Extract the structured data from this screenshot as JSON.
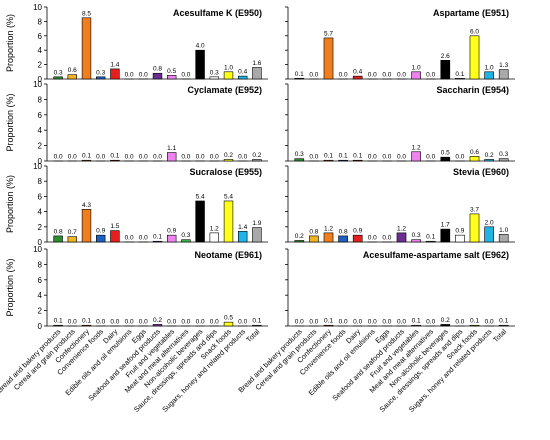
{
  "chart_data": {
    "type": "bar",
    "ylabel": "Proportion (%)",
    "ylim": [
      0,
      10
    ],
    "yticks": [
      "0",
      "2",
      "4",
      "6",
      "8",
      "10"
    ],
    "grid": false,
    "categories": [
      "Bread and bakery products",
      "Cereal and grain products",
      "Confectionery",
      "Convenience foods",
      "Dairy",
      "Edible oils and oil emulsions",
      "Eggs",
      "Seafood and seafood products",
      "Fruit and vegetables",
      "Meat and meat alternatives",
      "Non-alcoholic beverages",
      "Sauce, dressings, spreads and dips",
      "Snack foods",
      "Sugars, honey and related products",
      "Total"
    ],
    "category_colors": [
      "#2e8b2e",
      "#f0b41e",
      "#f07d1e",
      "#1f5fbf",
      "#e81e1e",
      "#2a4a9a",
      "#9e9e9e",
      "#6b2d8f",
      "#ee82ee",
      "#3cb44b",
      "#000000",
      "#ffffff",
      "#ffff1a",
      "#1eb4e6",
      "#a9a9a9"
    ],
    "panels": [
      {
        "title": "Acesulfame K (E950)",
        "values": [
          0.3,
          0.6,
          8.5,
          0.3,
          1.4,
          0.0,
          0.0,
          0.8,
          0.5,
          0.0,
          4.0,
          0.3,
          1.0,
          0.4,
          1.6
        ],
        "labels": [
          "0.3",
          "0.6",
          "8.5",
          "0.3",
          "1.4",
          "0.0",
          "0.0",
          "0.8",
          "0.5",
          "0.0",
          "4.0",
          "0.3",
          "1.0",
          "0.4",
          "1.6"
        ]
      },
      {
        "title": "Aspartame (E951)",
        "values": [
          0.1,
          0.0,
          5.7,
          0.0,
          0.4,
          0.0,
          0.0,
          0.0,
          1.0,
          0.0,
          2.6,
          0.1,
          6.0,
          1.0,
          1.3
        ],
        "labels": [
          "0.1",
          "0.0",
          "5.7",
          "0.0",
          "0.4",
          "0.0",
          "0.0",
          "0.0",
          "1.0",
          "0.0",
          "2.6",
          "0.1",
          "6.0",
          "1.0",
          "1.3"
        ]
      },
      {
        "title": "Cyclamate (E952)",
        "values": [
          0.0,
          0.0,
          0.1,
          0.0,
          0.1,
          0.0,
          0.0,
          0.0,
          1.1,
          0.0,
          0.0,
          0.0,
          0.2,
          0.0,
          0.2
        ],
        "labels": [
          "0.0",
          "0.0",
          "0.1",
          "0.0",
          "0.1",
          "0.0",
          "0.0",
          "0.0",
          "1.1",
          "0.0",
          "0.0",
          "0.0",
          "0.2",
          "0.0",
          "0.2"
        ]
      },
      {
        "title": "Saccharin (E954)",
        "values": [
          0.3,
          0.0,
          0.1,
          0.1,
          0.1,
          0.0,
          0.0,
          0.0,
          1.2,
          0.0,
          0.5,
          0.0,
          0.6,
          0.2,
          0.3
        ],
        "labels": [
          "0.3",
          "0.0",
          "0.1",
          "0.1",
          "0.1",
          "0.0",
          "0.0",
          "0.0",
          "1.2",
          "0.0",
          "0.5",
          "0.0",
          "0.6",
          "0.2",
          "0.3"
        ]
      },
      {
        "title": "Sucralose (E955)",
        "values": [
          0.8,
          0.7,
          4.3,
          0.9,
          1.5,
          0.0,
          0.0,
          0.1,
          0.9,
          0.3,
          5.4,
          1.2,
          5.4,
          1.4,
          1.9
        ],
        "labels": [
          "0.8",
          "0.7",
          "4.3",
          "0.9",
          "1.5",
          "0.0",
          "0.0",
          "0.1",
          "0.9",
          "0.3",
          "5.4",
          "1.2",
          "5.4",
          "1.4",
          "1.9"
        ]
      },
      {
        "title": "Stevia (E960)",
        "values": [
          0.2,
          0.8,
          1.2,
          0.8,
          0.9,
          0.0,
          0.0,
          1.2,
          0.3,
          0.1,
          1.7,
          0.9,
          3.7,
          2.0,
          1.0
        ],
        "labels": [
          "0.2",
          "0.8",
          "1.2",
          "0.8",
          "0.9",
          "0.0",
          "0.0",
          "1.2",
          "0.3",
          "0.1",
          "1.7",
          "0.9",
          "3.7",
          "2.0",
          "1.0"
        ]
      },
      {
        "title": "Neotame (E961)",
        "values": [
          0.1,
          0.0,
          0.1,
          0.0,
          0.0,
          0.0,
          0.0,
          0.2,
          0.0,
          0.0,
          0.0,
          0.0,
          0.5,
          0.0,
          0.1
        ],
        "labels": [
          "0.1",
          "0.0",
          "0.1",
          "0.0",
          "0.0",
          "0.0",
          "0.0",
          "0.2",
          "0.0",
          "0.0",
          "0.0",
          "0.0",
          "0.5",
          "0.0",
          "0.1"
        ]
      },
      {
        "title": "Acesulfame-aspartame salt (E962)",
        "values": [
          0.0,
          0.0,
          0.1,
          0.0,
          0.0,
          0.0,
          0.0,
          0.0,
          0.1,
          0.0,
          0.2,
          0.0,
          0.1,
          0.0,
          0.1
        ],
        "labels": [
          "0.0",
          "0.0",
          "0.1",
          "0.0",
          "0.0",
          "0.0",
          "0.0",
          "0.0",
          "0.1",
          "0.0",
          "0.2",
          "0.0",
          "0.1",
          "0.0",
          "0.1"
        ]
      }
    ]
  }
}
